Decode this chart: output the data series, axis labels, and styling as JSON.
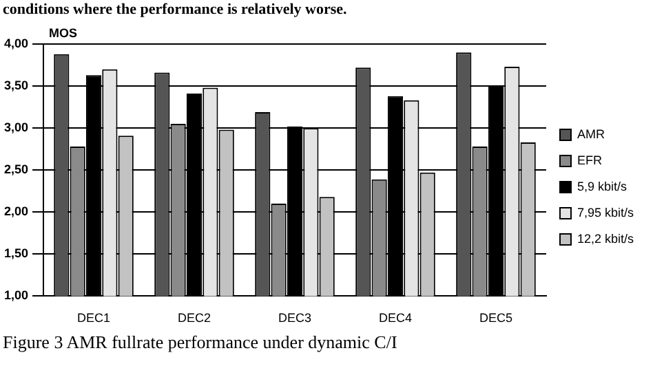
{
  "chart_data": {
    "type": "bar",
    "ylabel": "MOS",
    "categories": [
      "DEC1",
      "DEC2",
      "DEC3",
      "DEC4",
      "DEC5"
    ],
    "series": [
      {
        "name": "AMR",
        "color": "#555555",
        "values": [
          3.88,
          3.66,
          3.19,
          3.72,
          3.9
        ]
      },
      {
        "name": "EFR",
        "color": "#8a8a8a",
        "values": [
          2.78,
          3.05,
          2.1,
          2.39,
          2.78
        ]
      },
      {
        "name": "5,9 kbit/s",
        "color": "#000000",
        "values": [
          3.63,
          3.41,
          3.02,
          3.38,
          3.5
        ]
      },
      {
        "name": "7,95 kbit/s",
        "color": "#e4e4e4",
        "values": [
          3.7,
          3.48,
          3.0,
          3.33,
          3.73
        ]
      },
      {
        "name": "12,2 kbit/s",
        "color": "#c2c2c2",
        "values": [
          2.91,
          2.98,
          2.18,
          2.47,
          2.83
        ]
      }
    ],
    "ylim": [
      1,
      4
    ],
    "yticks": [
      {
        "value": 1,
        "label": "1,00"
      },
      {
        "value": 1.5,
        "label": "1,50"
      },
      {
        "value": 2,
        "label": "2,00"
      },
      {
        "value": 2.5,
        "label": "2,50"
      },
      {
        "value": 3,
        "label": "3,00"
      },
      {
        "value": 3.5,
        "label": "3,50"
      },
      {
        "value": 4,
        "label": "4,00"
      }
    ],
    "grid": "y",
    "legend": "right",
    "annotations": [
      "conditions where the performance is relatively worse.",
      "Figure 3 AMR fullrate performance under dynamic C/I"
    ]
  }
}
